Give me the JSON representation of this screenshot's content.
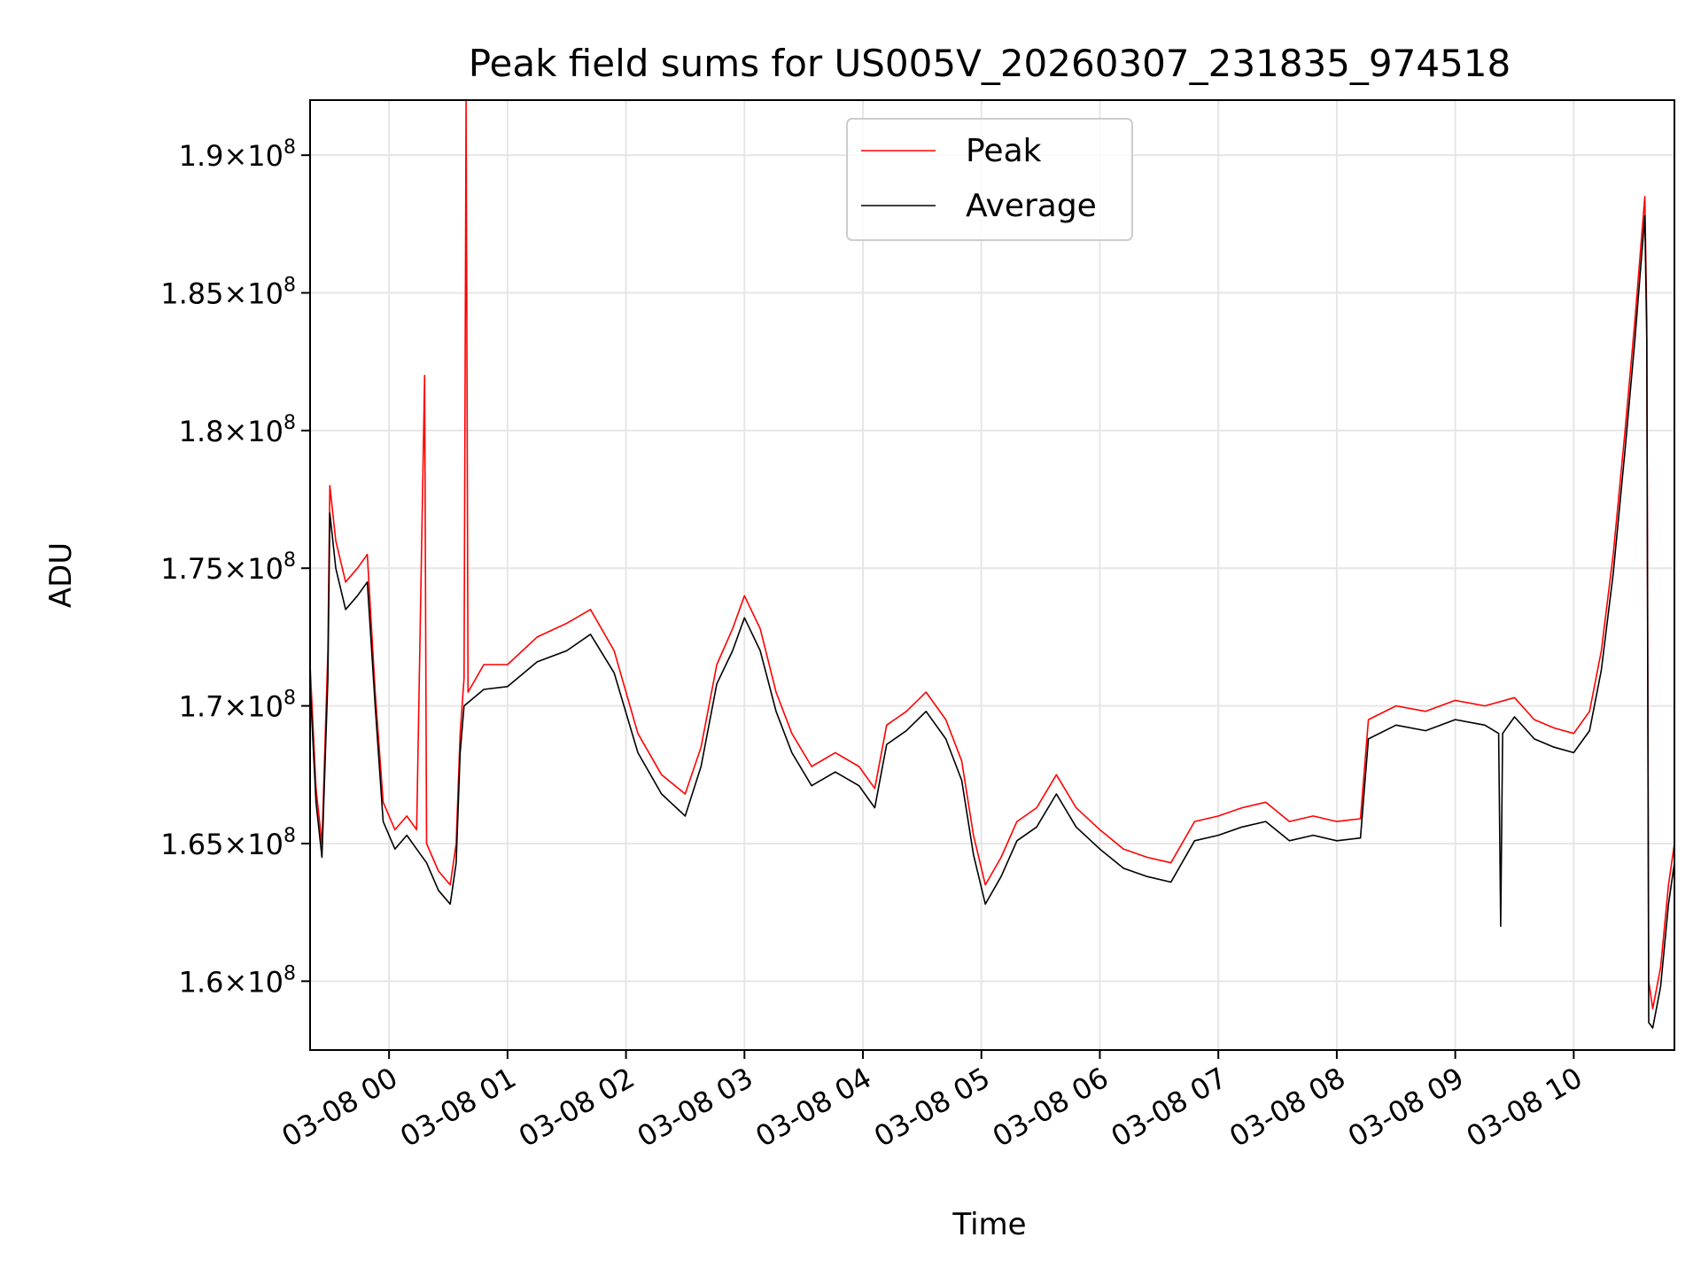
{
  "chart_data": {
    "type": "line",
    "title": "Peak field sums for US005V_20260307_231835_974518",
    "xlabel": "Time",
    "ylabel": "ADU",
    "xlim": [
      "2026-03-07 23:20",
      "2026-03-08 10:51"
    ],
    "ylim": [
      157500000,
      192000000
    ],
    "grid": true,
    "legend_position": "top-center",
    "x_ticks": [
      {
        "value": "2026-03-08 00:00",
        "label": "03-08 00"
      },
      {
        "value": "2026-03-08 01:00",
        "label": "03-08 01"
      },
      {
        "value": "2026-03-08 02:00",
        "label": "03-08 02"
      },
      {
        "value": "2026-03-08 03:00",
        "label": "03-08 03"
      },
      {
        "value": "2026-03-08 04:00",
        "label": "03-08 04"
      },
      {
        "value": "2026-03-08 05:00",
        "label": "03-08 05"
      },
      {
        "value": "2026-03-08 06:00",
        "label": "03-08 06"
      },
      {
        "value": "2026-03-08 07:00",
        "label": "03-08 07"
      },
      {
        "value": "2026-03-08 08:00",
        "label": "03-08 08"
      },
      {
        "value": "2026-03-08 09:00",
        "label": "03-08 09"
      },
      {
        "value": "2026-03-08 10:00",
        "label": "03-08 10"
      }
    ],
    "y_ticks": [
      {
        "value": 160000000,
        "mantissa": "1.6",
        "exponent": "8"
      },
      {
        "value": 165000000,
        "mantissa": "1.65",
        "exponent": "8"
      },
      {
        "value": 170000000,
        "mantissa": "1.7",
        "exponent": "8"
      },
      {
        "value": 175000000,
        "mantissa": "1.75",
        "exponent": "8"
      },
      {
        "value": 180000000,
        "mantissa": "1.8",
        "exponent": "8"
      },
      {
        "value": 185000000,
        "mantissa": "1.85",
        "exponent": "8"
      },
      {
        "value": 190000000,
        "mantissa": "1.9",
        "exponent": "8"
      }
    ],
    "series": [
      {
        "name": "Peak",
        "color": "#ff0000",
        "points": [
          [
            "2026-03-07 23:20",
            171500000
          ],
          [
            "2026-03-07 23:23",
            167000000
          ],
          [
            "2026-03-07 23:26",
            165000000
          ],
          [
            "2026-03-07 23:29",
            172000000
          ],
          [
            "2026-03-07 23:30",
            178000000
          ],
          [
            "2026-03-07 23:33",
            176000000
          ],
          [
            "2026-03-07 23:38",
            174500000
          ],
          [
            "2026-03-07 23:44",
            175000000
          ],
          [
            "2026-03-07 23:49",
            175500000
          ],
          [
            "2026-03-07 23:53",
            170500000
          ],
          [
            "2026-03-07 23:57",
            166500000
          ],
          [
            "2026-03-08 00:03",
            165500000
          ],
          [
            "2026-03-08 00:09",
            166000000
          ],
          [
            "2026-03-08 00:14",
            165500000
          ],
          [
            "2026-03-08 00:18",
            182000000
          ],
          [
            "2026-03-08 00:19",
            165000000
          ],
          [
            "2026-03-08 00:25",
            164000000
          ],
          [
            "2026-03-08 00:31",
            163500000
          ],
          [
            "2026-03-08 00:34",
            165000000
          ],
          [
            "2026-03-08 00:36",
            169000000
          ],
          [
            "2026-03-08 00:38",
            171000000
          ],
          [
            "2026-03-08 00:39",
            192000000
          ],
          [
            "2026-03-08 00:40",
            170500000
          ],
          [
            "2026-03-08 00:48",
            171500000
          ],
          [
            "2026-03-08 01:00",
            171500000
          ],
          [
            "2026-03-08 01:15",
            172500000
          ],
          [
            "2026-03-08 01:30",
            173000000
          ],
          [
            "2026-03-08 01:42",
            173500000
          ],
          [
            "2026-03-08 01:54",
            172000000
          ],
          [
            "2026-03-08 02:06",
            169000000
          ],
          [
            "2026-03-08 02:18",
            167500000
          ],
          [
            "2026-03-08 02:30",
            166800000
          ],
          [
            "2026-03-08 02:38",
            168500000
          ],
          [
            "2026-03-08 02:46",
            171500000
          ],
          [
            "2026-03-08 02:54",
            172800000
          ],
          [
            "2026-03-08 03:00",
            174000000
          ],
          [
            "2026-03-08 03:08",
            172800000
          ],
          [
            "2026-03-08 03:16",
            170500000
          ],
          [
            "2026-03-08 03:24",
            169000000
          ],
          [
            "2026-03-08 03:34",
            167800000
          ],
          [
            "2026-03-08 03:46",
            168300000
          ],
          [
            "2026-03-08 03:58",
            167800000
          ],
          [
            "2026-03-08 04:06",
            167000000
          ],
          [
            "2026-03-08 04:12",
            169300000
          ],
          [
            "2026-03-08 04:22",
            169800000
          ],
          [
            "2026-03-08 04:32",
            170500000
          ],
          [
            "2026-03-08 04:42",
            169500000
          ],
          [
            "2026-03-08 04:50",
            168000000
          ],
          [
            "2026-03-08 04:56",
            165300000
          ],
          [
            "2026-03-08 05:02",
            163500000
          ],
          [
            "2026-03-08 05:10",
            164500000
          ],
          [
            "2026-03-08 05:18",
            165800000
          ],
          [
            "2026-03-08 05:28",
            166300000
          ],
          [
            "2026-03-08 05:38",
            167500000
          ],
          [
            "2026-03-08 05:48",
            166300000
          ],
          [
            "2026-03-08 06:00",
            165500000
          ],
          [
            "2026-03-08 06:12",
            164800000
          ],
          [
            "2026-03-08 06:24",
            164500000
          ],
          [
            "2026-03-08 06:36",
            164300000
          ],
          [
            "2026-03-08 06:48",
            165800000
          ],
          [
            "2026-03-08 07:00",
            166000000
          ],
          [
            "2026-03-08 07:12",
            166300000
          ],
          [
            "2026-03-08 07:24",
            166500000
          ],
          [
            "2026-03-08 07:36",
            165800000
          ],
          [
            "2026-03-08 07:48",
            166000000
          ],
          [
            "2026-03-08 08:00",
            165800000
          ],
          [
            "2026-03-08 08:12",
            165900000
          ],
          [
            "2026-03-08 08:16",
            169500000
          ],
          [
            "2026-03-08 08:30",
            170000000
          ],
          [
            "2026-03-08 08:45",
            169800000
          ],
          [
            "2026-03-08 09:00",
            170200000
          ],
          [
            "2026-03-08 09:15",
            170000000
          ],
          [
            "2026-03-08 09:30",
            170300000
          ],
          [
            "2026-03-08 09:40",
            169500000
          ],
          [
            "2026-03-08 09:50",
            169200000
          ],
          [
            "2026-03-08 10:00",
            169000000
          ],
          [
            "2026-03-08 10:08",
            169800000
          ],
          [
            "2026-03-08 10:14",
            172000000
          ],
          [
            "2026-03-08 10:20",
            175500000
          ],
          [
            "2026-03-08 10:26",
            180000000
          ],
          [
            "2026-03-08 10:31",
            184000000
          ],
          [
            "2026-03-08 10:36",
            188500000
          ],
          [
            "2026-03-08 10:37",
            184000000
          ],
          [
            "2026-03-08 10:38",
            160000000
          ],
          [
            "2026-03-08 10:40",
            159000000
          ],
          [
            "2026-03-08 10:44",
            160500000
          ],
          [
            "2026-03-08 10:48",
            163500000
          ],
          [
            "2026-03-08 10:51",
            165000000
          ]
        ]
      },
      {
        "name": "Average",
        "color": "#000000",
        "points": [
          [
            "2026-03-07 23:20",
            170800000
          ],
          [
            "2026-03-07 23:23",
            166500000
          ],
          [
            "2026-03-07 23:26",
            164500000
          ],
          [
            "2026-03-07 23:29",
            171000000
          ],
          [
            "2026-03-07 23:30",
            177000000
          ],
          [
            "2026-03-07 23:33",
            175000000
          ],
          [
            "2026-03-07 23:38",
            173500000
          ],
          [
            "2026-03-07 23:44",
            174000000
          ],
          [
            "2026-03-07 23:49",
            174500000
          ],
          [
            "2026-03-07 23:53",
            170000000
          ],
          [
            "2026-03-07 23:57",
            165800000
          ],
          [
            "2026-03-08 00:03",
            164800000
          ],
          [
            "2026-03-08 00:09",
            165300000
          ],
          [
            "2026-03-08 00:14",
            164800000
          ],
          [
            "2026-03-08 00:19",
            164300000
          ],
          [
            "2026-03-08 00:25",
            163300000
          ],
          [
            "2026-03-08 00:31",
            162800000
          ],
          [
            "2026-03-08 00:34",
            164300000
          ],
          [
            "2026-03-08 00:36",
            168300000
          ],
          [
            "2026-03-08 00:38",
            170000000
          ],
          [
            "2026-03-08 00:48",
            170600000
          ],
          [
            "2026-03-08 01:00",
            170700000
          ],
          [
            "2026-03-08 01:15",
            171600000
          ],
          [
            "2026-03-08 01:30",
            172000000
          ],
          [
            "2026-03-08 01:42",
            172600000
          ],
          [
            "2026-03-08 01:54",
            171200000
          ],
          [
            "2026-03-08 02:06",
            168300000
          ],
          [
            "2026-03-08 02:18",
            166800000
          ],
          [
            "2026-03-08 02:30",
            166000000
          ],
          [
            "2026-03-08 02:38",
            167800000
          ],
          [
            "2026-03-08 02:46",
            170800000
          ],
          [
            "2026-03-08 02:54",
            172000000
          ],
          [
            "2026-03-08 03:00",
            173200000
          ],
          [
            "2026-03-08 03:08",
            172000000
          ],
          [
            "2026-03-08 03:16",
            169800000
          ],
          [
            "2026-03-08 03:24",
            168300000
          ],
          [
            "2026-03-08 03:34",
            167100000
          ],
          [
            "2026-03-08 03:46",
            167600000
          ],
          [
            "2026-03-08 03:58",
            167100000
          ],
          [
            "2026-03-08 04:06",
            166300000
          ],
          [
            "2026-03-08 04:12",
            168600000
          ],
          [
            "2026-03-08 04:22",
            169100000
          ],
          [
            "2026-03-08 04:32",
            169800000
          ],
          [
            "2026-03-08 04:42",
            168800000
          ],
          [
            "2026-03-08 04:50",
            167300000
          ],
          [
            "2026-03-08 04:56",
            164600000
          ],
          [
            "2026-03-08 05:02",
            162800000
          ],
          [
            "2026-03-08 05:10",
            163800000
          ],
          [
            "2026-03-08 05:18",
            165100000
          ],
          [
            "2026-03-08 05:28",
            165600000
          ],
          [
            "2026-03-08 05:38",
            166800000
          ],
          [
            "2026-03-08 05:48",
            165600000
          ],
          [
            "2026-03-08 06:00",
            164800000
          ],
          [
            "2026-03-08 06:12",
            164100000
          ],
          [
            "2026-03-08 06:24",
            163800000
          ],
          [
            "2026-03-08 06:36",
            163600000
          ],
          [
            "2026-03-08 06:48",
            165100000
          ],
          [
            "2026-03-08 07:00",
            165300000
          ],
          [
            "2026-03-08 07:12",
            165600000
          ],
          [
            "2026-03-08 07:24",
            165800000
          ],
          [
            "2026-03-08 07:36",
            165100000
          ],
          [
            "2026-03-08 07:48",
            165300000
          ],
          [
            "2026-03-08 08:00",
            165100000
          ],
          [
            "2026-03-08 08:12",
            165200000
          ],
          [
            "2026-03-08 08:16",
            168800000
          ],
          [
            "2026-03-08 08:30",
            169300000
          ],
          [
            "2026-03-08 08:45",
            169100000
          ],
          [
            "2026-03-08 09:00",
            169500000
          ],
          [
            "2026-03-08 09:15",
            169300000
          ],
          [
            "2026-03-08 09:22",
            169000000
          ],
          [
            "2026-03-08 09:23",
            162000000
          ],
          [
            "2026-03-08 09:24",
            169000000
          ],
          [
            "2026-03-08 09:30",
            169600000
          ],
          [
            "2026-03-08 09:40",
            168800000
          ],
          [
            "2026-03-08 09:50",
            168500000
          ],
          [
            "2026-03-08 10:00",
            168300000
          ],
          [
            "2026-03-08 10:08",
            169100000
          ],
          [
            "2026-03-08 10:14",
            171300000
          ],
          [
            "2026-03-08 10:20",
            174800000
          ],
          [
            "2026-03-08 10:26",
            179300000
          ],
          [
            "2026-03-08 10:31",
            183300000
          ],
          [
            "2026-03-08 10:36",
            187800000
          ],
          [
            "2026-03-08 10:37",
            183300000
          ],
          [
            "2026-03-08 10:38",
            158500000
          ],
          [
            "2026-03-08 10:40",
            158300000
          ],
          [
            "2026-03-08 10:44",
            159800000
          ],
          [
            "2026-03-08 10:48",
            162800000
          ],
          [
            "2026-03-08 10:51",
            164300000
          ]
        ]
      }
    ]
  }
}
